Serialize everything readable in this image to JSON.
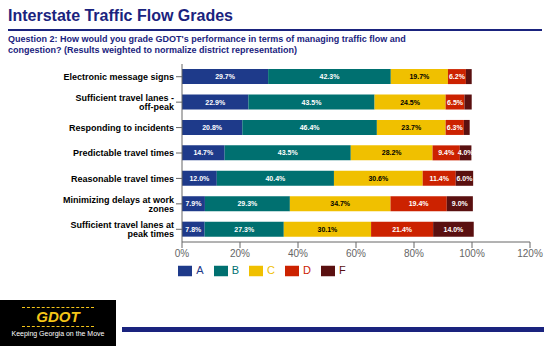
{
  "chart_data": {
    "type": "bar",
    "title": "Interstate Traffic Flow Grades",
    "subtitle": "Question 2:  How would you grade GDOT's performance in terms of managing traffic flow and\ncongestion? (Results weighted to normalize district representation)",
    "annotations": [
      "GDOT",
      "Keeping Georgia on the Move"
    ],
    "orientation": "horizontal",
    "stacked": true,
    "data_labels": true,
    "grid": false,
    "categories": [
      "Electronic message signs",
      "Sufficient travel lanes - off-peak",
      "Responding to incidents",
      "Predictable travel times",
      "Reasonable travel times",
      "Minimizing delays at work zones",
      "Sufficient travel lanes at peak times"
    ],
    "series": [
      {
        "name": "A",
        "color": "#1e3a8a",
        "values": [
          29.7,
          22.9,
          20.8,
          14.7,
          12.0,
          7.9,
          7.8
        ],
        "value_labels": [
          "29.7%",
          "22.9%",
          "20.8%",
          "14.7%",
          "12.0%",
          "7.9%",
          "7.8%"
        ]
      },
      {
        "name": "B",
        "color": "#007070",
        "values": [
          42.3,
          43.5,
          46.4,
          43.5,
          40.4,
          29.3,
          27.3
        ],
        "value_labels": [
          "42.3%",
          "43.5%",
          "46.4%",
          "43.5%",
          "40.4%",
          "29.3%",
          "27.3%"
        ]
      },
      {
        "name": "C",
        "color": "#f0c000",
        "values": [
          19.7,
          24.5,
          23.7,
          28.2,
          30.6,
          34.7,
          30.1
        ],
        "value_labels": [
          "19.7%",
          "24.5%",
          "23.7%",
          "28.2%",
          "30.6%",
          "34.7%",
          "30.1%"
        ]
      },
      {
        "name": "D",
        "color": "#cc2200",
        "values": [
          6.2,
          6.5,
          6.3,
          9.4,
          11.4,
          19.4,
          21.4
        ],
        "value_labels": [
          "6.2%",
          "6.5%",
          "6.3%",
          "9.4%",
          "11.4%",
          "19.4%",
          "21.4%"
        ]
      },
      {
        "name": "F",
        "color": "#5a1010",
        "values": [
          2.0,
          2.5,
          2.0,
          4.0,
          6.0,
          9.0,
          14.0
        ],
        "value_labels": [
          null,
          null,
          null,
          "4.0%",
          "6.0%",
          "9.0%",
          "14.0%"
        ]
      }
    ],
    "xlim": [
      0,
      120
    ],
    "xticks": [
      {
        "value": 0,
        "label": "0%"
      },
      {
        "value": 20,
        "label": "20%"
      },
      {
        "value": 40,
        "label": "40%"
      },
      {
        "value": 60,
        "label": "60%"
      },
      {
        "value": 80,
        "label": "80%"
      },
      {
        "value": 100,
        "label": "100%"
      },
      {
        "value": 120,
        "label": "120%"
      }
    ]
  }
}
